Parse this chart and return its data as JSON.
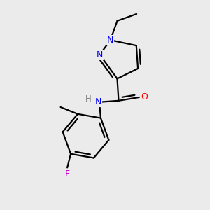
{
  "background_color": "#ebebeb",
  "atom_colors": {
    "N": "#0000ff",
    "O": "#ff0000",
    "F": "#cc00cc",
    "C": "#000000",
    "H": "#808080"
  },
  "bond_color": "#000000",
  "bond_width": 1.6,
  "figsize": [
    3.0,
    3.0
  ],
  "dpi": 100,
  "xlim": [
    0,
    3
  ],
  "ylim": [
    0,
    3
  ]
}
